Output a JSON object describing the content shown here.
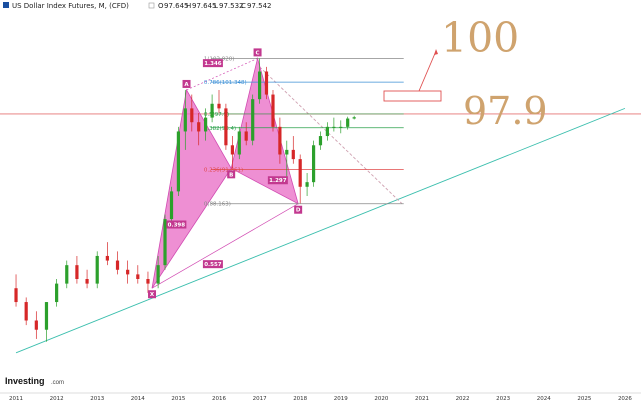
{
  "header": {
    "instrument": "US Dollar Index Futures, M, (CFD)",
    "open": "97.645",
    "high": "97.645",
    "low": "97.532",
    "close": "97.542"
  },
  "brand": {
    "name": "Investing",
    "suffix": ".com"
  },
  "annotations": {
    "target": "100",
    "level": "97.9"
  },
  "fibonacci": [
    {
      "label": "1(103.920)",
      "value": 103.92,
      "color": "#888888"
    },
    {
      "label": "0.786(101.348)",
      "value": 101.348,
      "color": "#3b8fd6"
    },
    {
      "label": "0.5(97.9)",
      "value": 97.9,
      "color": "#2aa04a"
    },
    {
      "label": "0.382(96.4)",
      "value": 96.4,
      "color": "#2aa04a"
    },
    {
      "label": "0.236(91.861)",
      "value": 91.861,
      "color": "#e04848"
    },
    {
      "label": "0(88.163)",
      "value": 88.163,
      "color": "#888888"
    }
  ],
  "pattern_points": [
    {
      "label": "X",
      "year": 2014.35,
      "price": 79.0
    },
    {
      "label": "A",
      "year": 2015.2,
      "price": 100.5
    },
    {
      "label": "B",
      "year": 2016.3,
      "price": 92.0
    },
    {
      "label": "C",
      "year": 2016.95,
      "price": 103.92
    },
    {
      "label": "D",
      "year": 2017.95,
      "price": 88.163
    }
  ],
  "ratios": [
    {
      "label": "1.346",
      "year": 2015.85,
      "price": 103.3
    },
    {
      "label": "0.398",
      "year": 2014.95,
      "price": 85.8
    },
    {
      "label": "0.557",
      "year": 2015.85,
      "price": 81.5
    },
    {
      "label": "1.297",
      "year": 2017.45,
      "price": 90.6
    }
  ],
  "chart_data": {
    "type": "candlestick",
    "x_ticks": [
      "2011",
      "2012",
      "2013",
      "2014",
      "2015",
      "2016",
      "2017",
      "2018",
      "2019",
      "2020",
      "2021",
      "2022",
      "2023",
      "2024",
      "2025",
      "2026"
    ],
    "xlim": [
      2010.95,
      2026.1
    ],
    "ylim": [
      71.0,
      107.0
    ],
    "colors": {
      "up": "#2ca02c",
      "down": "#d62728"
    },
    "series": [
      {
        "name": "candles",
        "x": [
          2011.0,
          2011.25,
          2011.5,
          2011.75,
          2012.0,
          2012.25,
          2012.5,
          2012.75,
          2013.0,
          2013.25,
          2013.5,
          2013.75,
          2014.0,
          2014.25,
          2014.5,
          2014.67,
          2014.83,
          2015.0,
          2015.17,
          2015.33,
          2015.5,
          2015.67,
          2015.83,
          2016.0,
          2016.17,
          2016.33,
          2016.5,
          2016.67,
          2016.83,
          2017.0,
          2017.17,
          2017.33,
          2017.5,
          2017.67,
          2017.83,
          2018.0,
          2018.17,
          2018.33,
          2018.5,
          2018.67,
          2018.83,
          2019.0,
          2019.17,
          2019.33
        ],
        "open": [
          79.0,
          77.5,
          75.5,
          74.5,
          77.5,
          79.5,
          81.5,
          80.0,
          79.5,
          82.5,
          82.0,
          81.0,
          80.5,
          80.0,
          79.5,
          81.5,
          86.5,
          89.5,
          96.0,
          98.5,
          97.0,
          96.0,
          97.5,
          99.0,
          98.5,
          94.5,
          93.5,
          96.0,
          95.0,
          99.5,
          102.5,
          100.0,
          96.5,
          93.5,
          94.0,
          93.0,
          90.0,
          90.5,
          94.5,
          95.5,
          96.5,
          96.5,
          96.5,
          97.4
        ],
        "high": [
          80.5,
          78.0,
          76.5,
          77.5,
          80.0,
          82.0,
          82.5,
          81.0,
          83.0,
          84.0,
          83.0,
          82.0,
          81.5,
          80.8,
          82.5,
          87.0,
          90.0,
          96.5,
          100.5,
          100.0,
          98.0,
          98.5,
          100.0,
          100.5,
          99.0,
          95.5,
          96.5,
          97.0,
          100.0,
          103.9,
          103.0,
          100.5,
          97.5,
          95.0,
          95.5,
          93.5,
          91.5,
          95.0,
          96.0,
          97.0,
          97.5,
          97.2,
          97.6,
          97.7
        ],
        "low": [
          77.0,
          75.0,
          73.5,
          73.2,
          77.0,
          79.0,
          79.5,
          79.0,
          79.0,
          81.5,
          80.5,
          79.5,
          79.5,
          78.5,
          79.0,
          81.0,
          86.0,
          89.0,
          94.0,
          96.0,
          94.5,
          95.0,
          97.0,
          98.0,
          94.0,
          92.0,
          93.0,
          94.5,
          94.5,
          99.0,
          99.5,
          96.0,
          92.5,
          91.0,
          92.5,
          88.2,
          89.0,
          90.0,
          94.0,
          95.0,
          96.0,
          95.8,
          96.2,
          97.3
        ],
        "close": [
          77.5,
          75.5,
          74.5,
          77.5,
          79.5,
          81.5,
          80.0,
          79.5,
          82.5,
          82.0,
          81.0,
          80.5,
          80.0,
          79.5,
          81.5,
          86.5,
          89.5,
          96.0,
          98.5,
          97.0,
          96.0,
          97.5,
          99.0,
          98.5,
          94.5,
          93.5,
          96.0,
          95.0,
          99.5,
          102.5,
          100.0,
          96.5,
          93.5,
          94.0,
          93.0,
          90.0,
          90.5,
          94.5,
          95.5,
          96.5,
          96.5,
          96.5,
          97.4,
          97.54
        ]
      }
    ],
    "trendlines": [
      {
        "name": "support-teal",
        "from": [
          2011.0,
          72.0
        ],
        "to": [
          2026.0,
          98.5
        ],
        "color": "#3cbfae"
      },
      {
        "name": "dashed-down",
        "from": [
          2017.0,
          103.0
        ],
        "to": [
          2020.5,
          88.2
        ],
        "color": "#cfa0b0"
      }
    ],
    "horizontal_lines": [
      {
        "name": "level-97.9",
        "value": 97.9,
        "color": "#e57373"
      }
    ],
    "grid": false
  }
}
